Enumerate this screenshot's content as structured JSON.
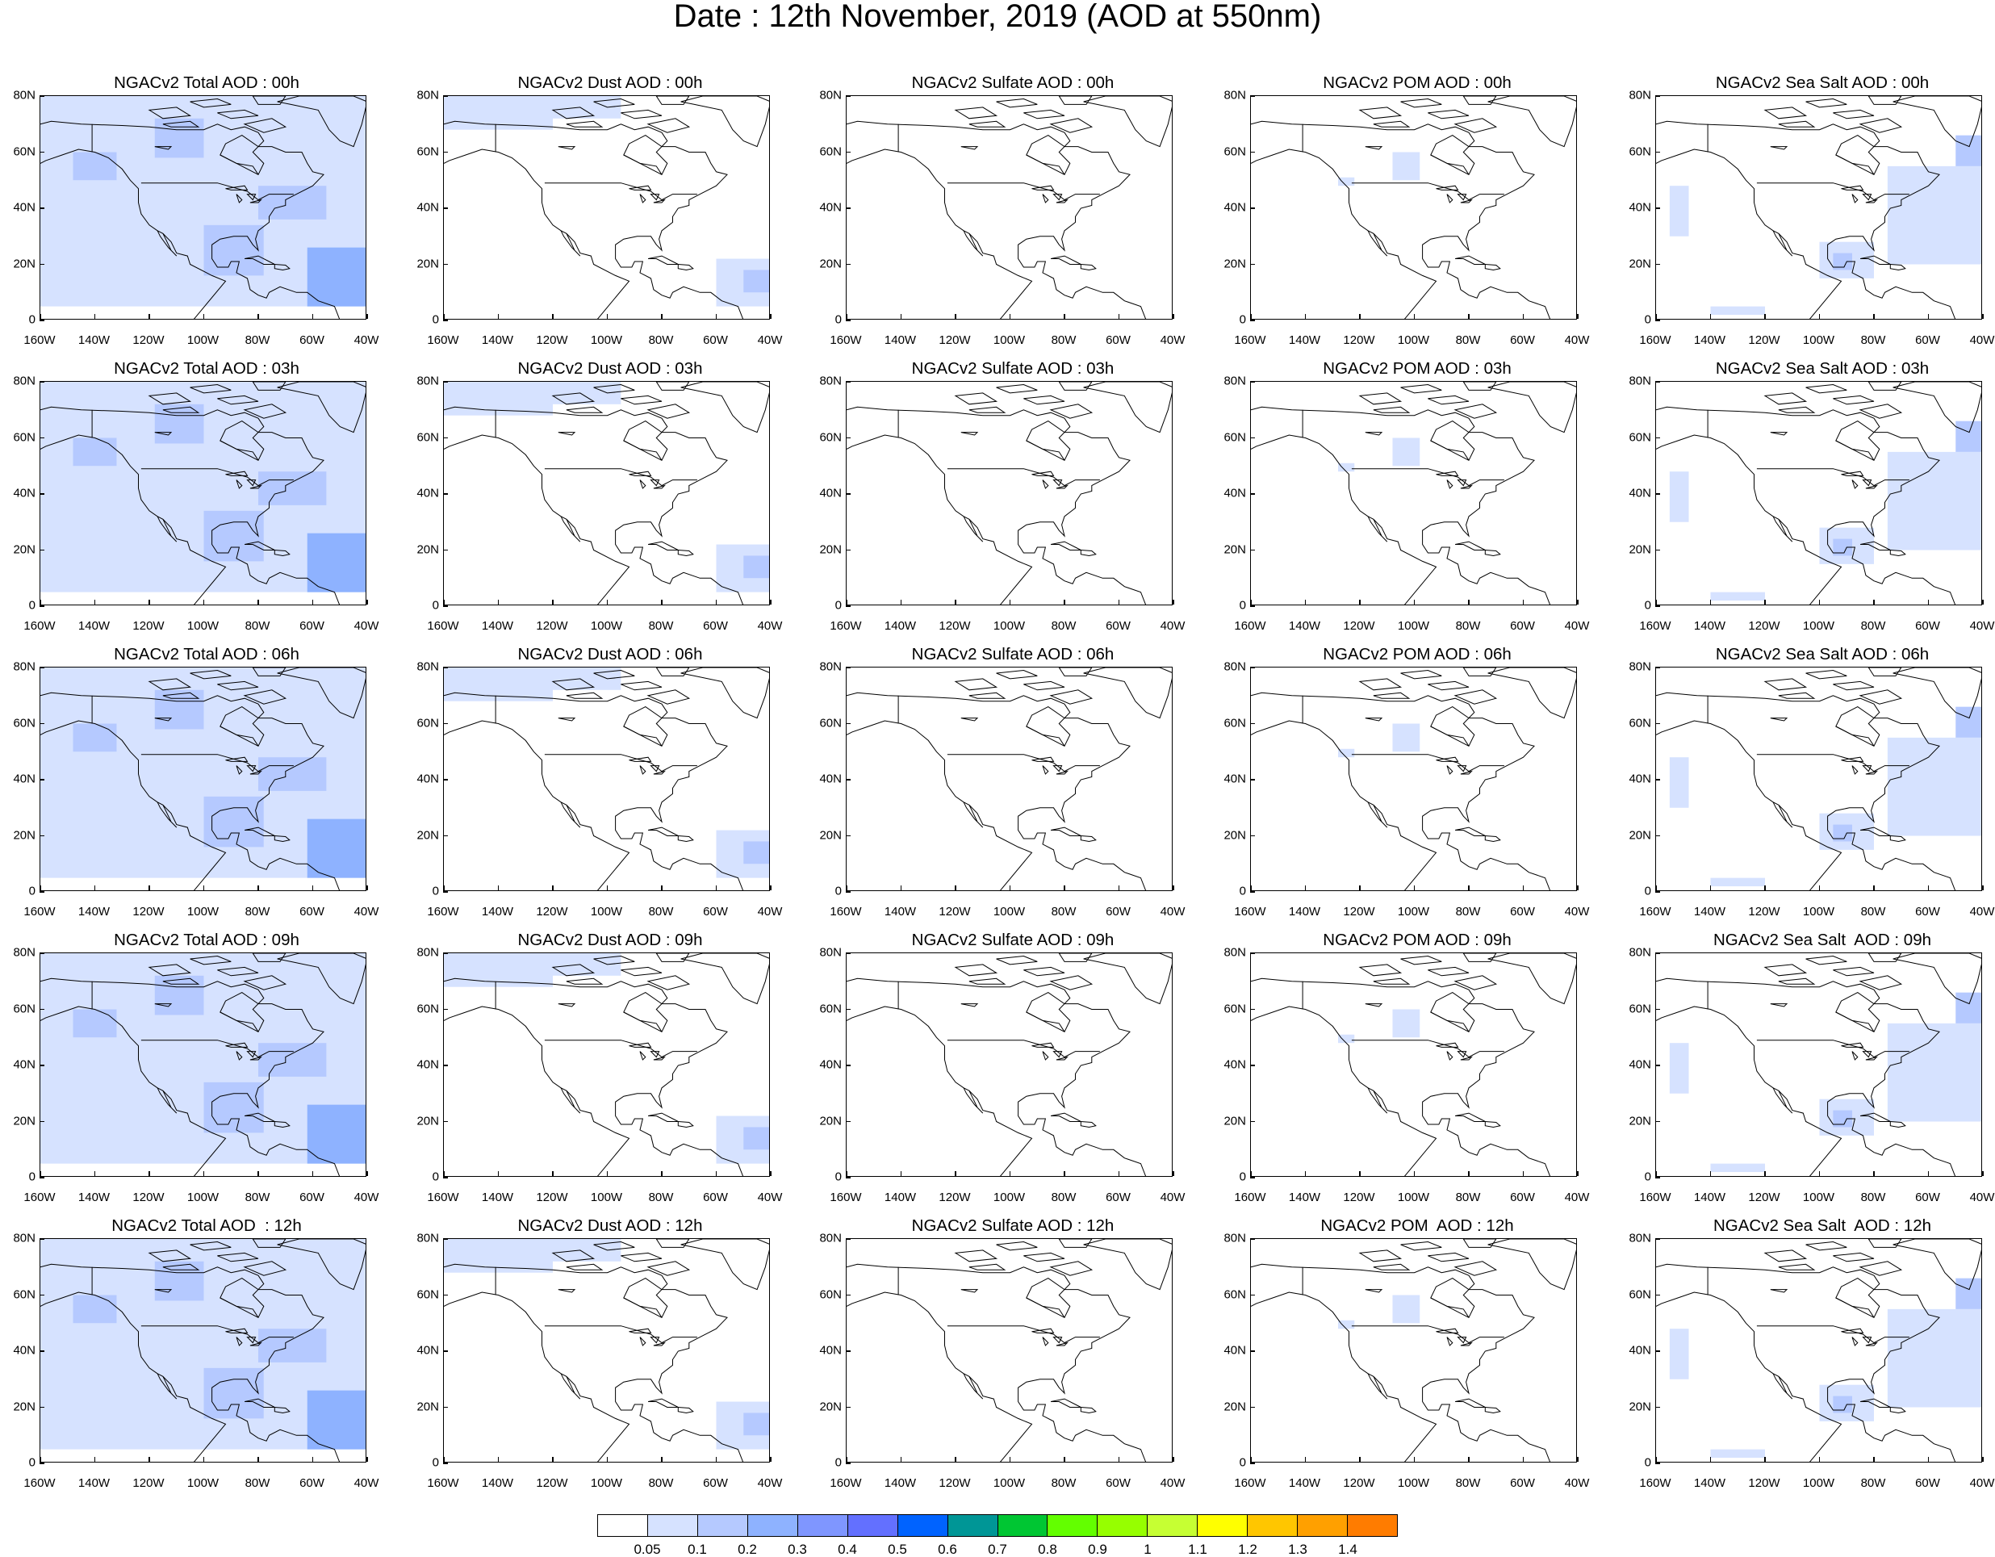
{
  "title": "Date : 12th November, 2019 (AOD at 550nm)",
  "panels": [
    [
      "NGACv2 Total AOD : 00h",
      "NGACv2 Dust AOD : 00h",
      "NGACv2 Sulfate AOD : 00h",
      "NGACv2 POM AOD : 00h",
      "NGACv2 Sea Salt AOD : 00h"
    ],
    [
      "NGACv2 Total AOD : 03h",
      "NGACv2 Dust AOD : 03h",
      "NGACv2 Sulfate AOD : 03h",
      "NGACv2 POM AOD : 03h",
      "NGACv2 Sea Salt AOD : 03h"
    ],
    [
      "NGACv2 Total AOD : 06h",
      "NGACv2 Dust AOD : 06h",
      "NGACv2 Sulfate AOD : 06h",
      "NGACv2 POM AOD : 06h",
      "NGACv2 Sea Salt AOD : 06h"
    ],
    [
      "NGACv2 Total AOD : 09h",
      "NGACv2 Dust AOD : 09h",
      "NGACv2 Sulfate AOD : 09h",
      "NGACv2 POM AOD : 09h",
      "NGACv2 Sea Salt  AOD : 09h"
    ],
    [
      "NGACv2 Total AOD  : 12h",
      "NGACv2 Dust AOD : 12h",
      "NGACv2 Sulfate AOD : 12h",
      "NGACv2 POM  AOD : 12h",
      "NGACv2 Sea Salt  AOD : 12h"
    ]
  ],
  "species": [
    "total",
    "dust",
    "sulfate",
    "pom",
    "seasalt"
  ],
  "x_ticks": [
    "160W",
    "140W",
    "120W",
    "100W",
    "80W",
    "60W",
    "40W"
  ],
  "y_ticks": [
    "80N",
    "60N",
    "40N",
    "20N",
    "0"
  ],
  "map_extent": {
    "lon": [
      -160,
      -40
    ],
    "lat": [
      0,
      80
    ]
  },
  "colorbar": {
    "colors": [
      "#ffffff",
      "#d6e2ff",
      "#b5c9ff",
      "#8eb2ff",
      "#7f96ff",
      "#6370ff",
      "#0063ff",
      "#009696",
      "#00c633",
      "#63ff00",
      "#96ff00",
      "#c6ff33",
      "#ffff00",
      "#ffc600",
      "#ffa000",
      "#ff7c00",
      "#ff1900"
    ],
    "labels": [
      "0.05",
      "0.1",
      "0.2",
      "0.3",
      "0.4",
      "0.5",
      "0.6",
      "0.7",
      "0.8",
      "0.9",
      "1",
      "1.1",
      "1.2",
      "1.3",
      "1.4"
    ]
  },
  "aod_fields": {
    "total": [
      {
        "lon": [
          -160,
          -40
        ],
        "lat": [
          5,
          80
        ],
        "level": 1
      },
      {
        "lon": [
          -118,
          -100
        ],
        "lat": [
          58,
          72
        ],
        "level": 2
      },
      {
        "lon": [
          -100,
          -78
        ],
        "lat": [
          16,
          34
        ],
        "level": 2
      },
      {
        "lon": [
          -62,
          -40
        ],
        "lat": [
          5,
          26
        ],
        "level": 3
      },
      {
        "lon": [
          -80,
          -55
        ],
        "lat": [
          36,
          48
        ],
        "level": 2
      },
      {
        "lon": [
          -148,
          -132
        ],
        "lat": [
          50,
          60
        ],
        "level": 2
      }
    ],
    "dust": [
      {
        "lon": [
          -160,
          -120
        ],
        "lat": [
          68,
          80
        ],
        "level": 1
      },
      {
        "lon": [
          -120,
          -95
        ],
        "lat": [
          72,
          80
        ],
        "level": 1
      },
      {
        "lon": [
          -60,
          -40
        ],
        "lat": [
          5,
          22
        ],
        "level": 1
      },
      {
        "lon": [
          -50,
          -40
        ],
        "lat": [
          10,
          18
        ],
        "level": 2
      }
    ],
    "sulfate": [],
    "pom": [
      {
        "lon": [
          -108,
          -98
        ],
        "lat": [
          50,
          60
        ],
        "level": 1
      },
      {
        "lon": [
          -128,
          -122
        ],
        "lat": [
          48,
          51
        ],
        "level": 1
      }
    ],
    "seasalt": [
      {
        "lon": [
          -75,
          -40
        ],
        "lat": [
          20,
          55
        ],
        "level": 1
      },
      {
        "lon": [
          -50,
          -40
        ],
        "lat": [
          55,
          66
        ],
        "level": 2
      },
      {
        "lon": [
          -100,
          -80
        ],
        "lat": [
          15,
          28
        ],
        "level": 1
      },
      {
        "lon": [
          -95,
          -88
        ],
        "lat": [
          18,
          24
        ],
        "level": 2
      },
      {
        "lon": [
          -155,
          -148
        ],
        "lat": [
          30,
          48
        ],
        "level": 1
      },
      {
        "lon": [
          -140,
          -120
        ],
        "lat": [
          2,
          5
        ],
        "level": 1
      }
    ]
  }
}
